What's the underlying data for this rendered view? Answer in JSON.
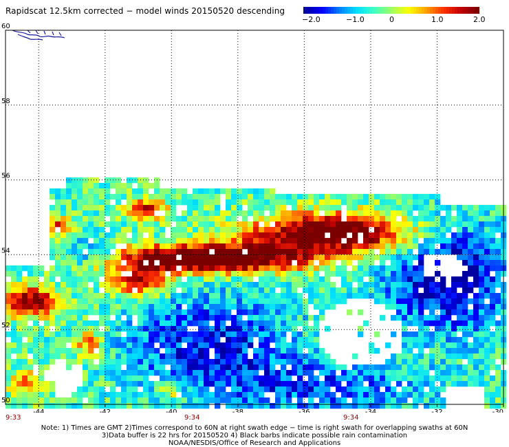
{
  "title": "Rapidscat 12.5km corrected − model winds 20150520 descending",
  "colorbar": {
    "labels": [
      "−2.0",
      "−1.0",
      "0",
      "1.0",
      "2.0"
    ],
    "range": [
      -2.0,
      2.0
    ],
    "colors": [
      "#0000a0",
      "#0000ff",
      "#0080ff",
      "#00e0ff",
      "#40ffc0",
      "#a0ff60",
      "#ffff00",
      "#ffa000",
      "#ff3000",
      "#c00000",
      "#7a0000"
    ]
  },
  "map": {
    "lon_range": [
      -45,
      -30
    ],
    "lat_range": [
      50,
      60
    ],
    "x_ticks": [
      "-44",
      "-42",
      "-40",
      "-38",
      "-36",
      "-34",
      "-32",
      "-30"
    ],
    "y_ticks": [
      "60",
      "58",
      "56",
      "54",
      "52",
      "50"
    ],
    "grid": true,
    "land": "Greenland coast (top-left)"
  },
  "times": [
    "9:33",
    "9:34",
    "9:34"
  ],
  "notes": [
    "Note: 1) Times are GMT 2)Times correspond to 60N at right swath edge − time is right swath for overlapping swaths at 60N",
    "3)Data buffer is 22 hrs for 20150520 4) Black barbs indicate possible rain contamination",
    "NOAA/NESDIS/Office of Research and Applications"
  ]
}
